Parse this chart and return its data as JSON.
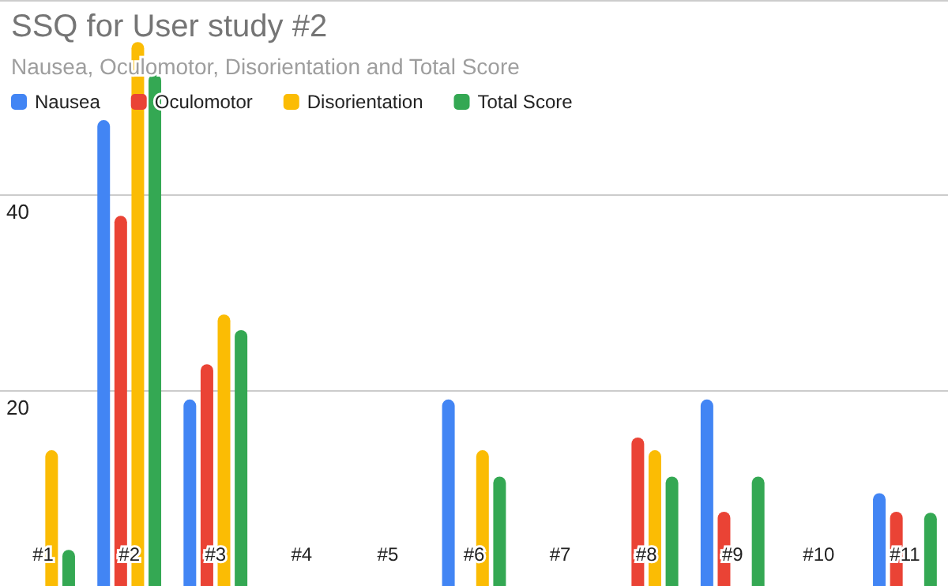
{
  "chart_data": {
    "type": "bar",
    "title": "SSQ for User study #2",
    "subtitle": "Nausea, Oculomotor, Disorientation and Total Score",
    "categories": [
      "#1",
      "#2",
      "#3",
      "#4",
      "#5",
      "#6",
      "#7",
      "#8",
      "#9",
      "#10",
      "#11"
    ],
    "series": [
      {
        "name": "Nausea",
        "color": "#4285f4",
        "values": [
          0,
          47.7,
          19.1,
          0,
          0,
          19.1,
          0,
          0,
          19.1,
          0,
          9.5
        ]
      },
      {
        "name": "Oculomotor",
        "color": "#ea4335",
        "values": [
          0,
          37.9,
          22.7,
          0,
          0,
          0,
          0,
          15.2,
          7.6,
          0,
          7.6
        ]
      },
      {
        "name": "Disorientation",
        "color": "#fbbc04",
        "values": [
          13.9,
          55.7,
          27.8,
          0,
          0,
          13.9,
          0,
          13.9,
          0,
          0,
          0
        ]
      },
      {
        "name": "Total Score",
        "color": "#34a853",
        "values": [
          3.7,
          52.4,
          26.2,
          0,
          0,
          11.2,
          0,
          11.2,
          11.2,
          0,
          7.5
        ]
      }
    ],
    "ylim": [
      0,
      60
    ],
    "yticks": [
      20,
      40,
      {
        "value": 60,
        "label": null
      }
    ],
    "grid": "y",
    "legend": "top left"
  }
}
